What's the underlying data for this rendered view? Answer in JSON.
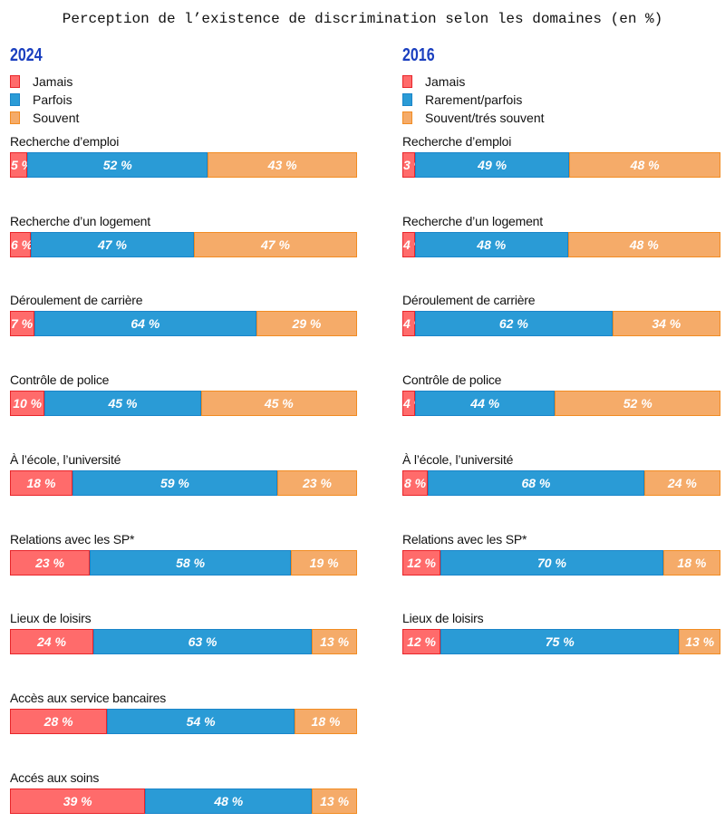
{
  "colors": {
    "jamais": "#ff6b6b",
    "parfois": "#2a9bd6",
    "souvent": "#f5ab69",
    "jamais_border": "#e8262b",
    "parfois_border": "#1a85c9",
    "souvent_border": "#f28c22",
    "year": "#1a3fbf"
  },
  "chart_data": [
    {
      "type": "bar",
      "stacked": true,
      "orientation": "horizontal",
      "title": "Perception de l’existence de discrimination selon les domaines (en %)",
      "year": "2024",
      "legend": [
        "Jamais",
        "Parfois",
        "Souvent"
      ],
      "categories": [
        "Recherche d’emploi",
        "Recherche d’un logement",
        "Déroulement de carrière",
        "Contrôle de police",
        "À l’école, l’université",
        "Relations avec les SP*",
        "Lieux de loisirs",
        "Accès aux service bancaires",
        "Accés aux soins"
      ],
      "series": [
        {
          "name": "Jamais",
          "values": [
            5,
            6,
            7,
            10,
            18,
            23,
            24,
            28,
            39
          ]
        },
        {
          "name": "Parfois",
          "values": [
            52,
            47,
            64,
            45,
            59,
            58,
            63,
            54,
            48
          ]
        },
        {
          "name": "Souvent",
          "values": [
            43,
            47,
            29,
            45,
            23,
            19,
            13,
            18,
            13
          ]
        }
      ]
    },
    {
      "type": "bar",
      "stacked": true,
      "orientation": "horizontal",
      "year": "2016",
      "legend": [
        "Jamais",
        "Rarement/parfois",
        "Souvent/trés souvent"
      ],
      "categories": [
        "Recherche d’emploi",
        "Recherche d’un logement",
        "Déroulement de carrière",
        "Contrôle de police",
        "À l’école, l’université",
        "Relations avec les SP*",
        "Lieux de loisirs"
      ],
      "series": [
        {
          "name": "Jamais",
          "values": [
            3,
            4,
            4,
            4,
            8,
            12,
            12
          ]
        },
        {
          "name": "Rarement/parfois",
          "values": [
            49,
            48,
            62,
            44,
            68,
            70,
            75
          ]
        },
        {
          "name": "Souvent/trés souvent",
          "values": [
            48,
            48,
            34,
            52,
            24,
            18,
            13
          ]
        }
      ]
    }
  ]
}
